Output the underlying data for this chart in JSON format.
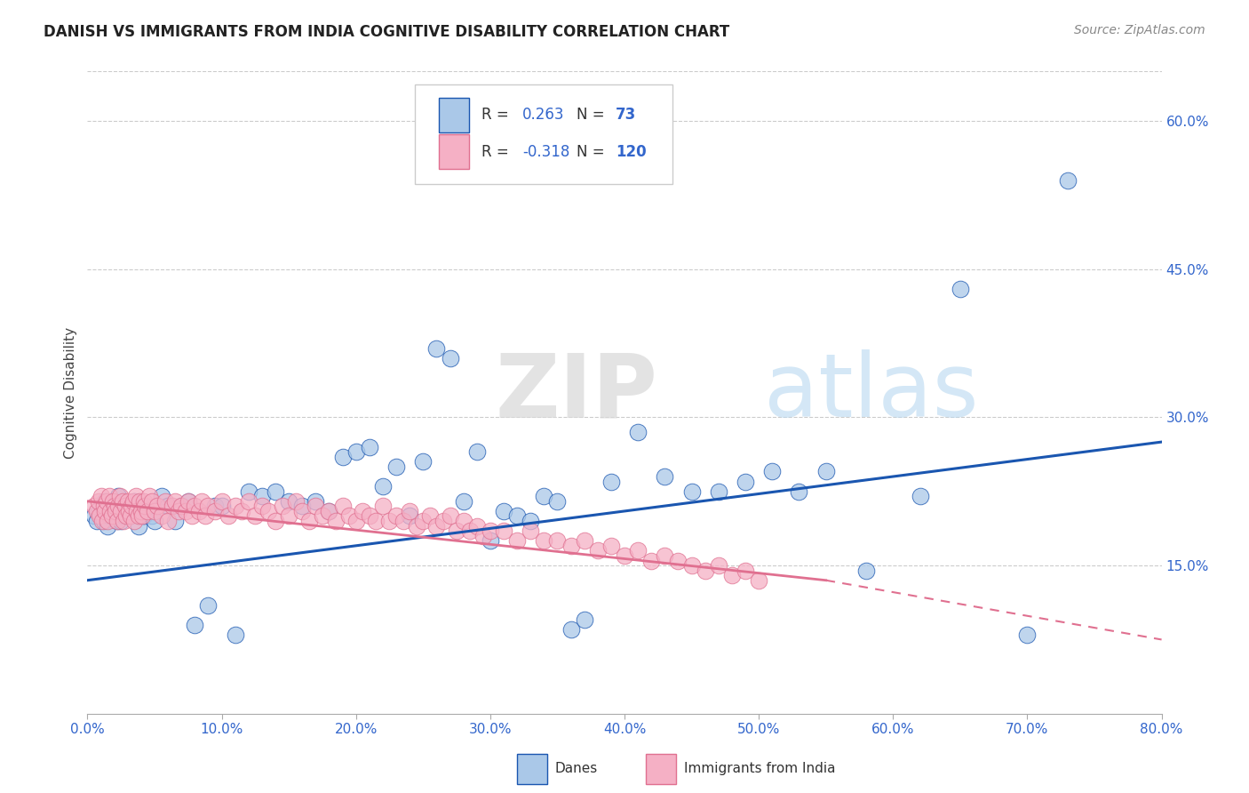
{
  "title": "DANISH VS IMMIGRANTS FROM INDIA COGNITIVE DISABILITY CORRELATION CHART",
  "source": "Source: ZipAtlas.com",
  "ylabel": "Cognitive Disability",
  "watermark_zip": "ZIP",
  "watermark_atlas": "atlas",
  "xlim": [
    0.0,
    0.8
  ],
  "ylim": [
    0.0,
    0.65
  ],
  "xticks": [
    0.0,
    0.1,
    0.2,
    0.3,
    0.4,
    0.5,
    0.6,
    0.7,
    0.8
  ],
  "yticks_right": [
    0.15,
    0.3,
    0.45,
    0.6
  ],
  "ytick_labels_right": [
    "15.0%",
    "30.0%",
    "45.0%",
    "60.0%"
  ],
  "xtick_labels": [
    "0.0%",
    "10.0%",
    "20.0%",
    "30.0%",
    "40.0%",
    "50.0%",
    "60.0%",
    "70.0%",
    "80.0%"
  ],
  "danes_color": "#aac8e8",
  "india_color": "#f5b0c5",
  "danes_line_color": "#1a56b0",
  "india_line_color": "#e07090",
  "legend_R_danes": "0.263",
  "legend_N_danes": "73",
  "legend_R_india": "-0.318",
  "legend_N_india": "120",
  "danes_label": "Danes",
  "india_label": "Immigrants from India",
  "danes_trend_x0": 0.0,
  "danes_trend_y0": 0.135,
  "danes_trend_x1": 0.8,
  "danes_trend_y1": 0.275,
  "india_trend_x0": 0.0,
  "india_trend_y0": 0.215,
  "india_trend_solid_end_x": 0.55,
  "india_trend_solid_end_y": 0.135,
  "india_trend_x1": 0.8,
  "india_trend_y1": 0.075,
  "danes_x": [
    0.005,
    0.007,
    0.008,
    0.01,
    0.012,
    0.013,
    0.015,
    0.016,
    0.018,
    0.02,
    0.022,
    0.023,
    0.025,
    0.027,
    0.03,
    0.032,
    0.035,
    0.038,
    0.04,
    0.042,
    0.045,
    0.048,
    0.05,
    0.055,
    0.06,
    0.065,
    0.07,
    0.075,
    0.08,
    0.09,
    0.095,
    0.1,
    0.11,
    0.12,
    0.13,
    0.14,
    0.15,
    0.16,
    0.17,
    0.18,
    0.19,
    0.2,
    0.21,
    0.22,
    0.23,
    0.24,
    0.25,
    0.26,
    0.27,
    0.28,
    0.29,
    0.3,
    0.31,
    0.32,
    0.33,
    0.34,
    0.35,
    0.36,
    0.37,
    0.39,
    0.41,
    0.43,
    0.45,
    0.47,
    0.49,
    0.51,
    0.53,
    0.55,
    0.58,
    0.62,
    0.65,
    0.7,
    0.73
  ],
  "danes_y": [
    0.2,
    0.195,
    0.205,
    0.21,
    0.195,
    0.215,
    0.19,
    0.2,
    0.205,
    0.215,
    0.195,
    0.22,
    0.195,
    0.2,
    0.205,
    0.2,
    0.215,
    0.19,
    0.21,
    0.2,
    0.205,
    0.2,
    0.195,
    0.22,
    0.21,
    0.195,
    0.21,
    0.215,
    0.09,
    0.11,
    0.21,
    0.21,
    0.08,
    0.225,
    0.22,
    0.225,
    0.215,
    0.21,
    0.215,
    0.205,
    0.26,
    0.265,
    0.27,
    0.23,
    0.25,
    0.2,
    0.255,
    0.37,
    0.36,
    0.215,
    0.265,
    0.175,
    0.205,
    0.2,
    0.195,
    0.22,
    0.215,
    0.085,
    0.095,
    0.235,
    0.285,
    0.24,
    0.225,
    0.225,
    0.235,
    0.245,
    0.225,
    0.245,
    0.145,
    0.22,
    0.43,
    0.08,
    0.54
  ],
  "india_x": [
    0.005,
    0.007,
    0.008,
    0.009,
    0.01,
    0.011,
    0.012,
    0.013,
    0.014,
    0.015,
    0.016,
    0.017,
    0.018,
    0.019,
    0.02,
    0.021,
    0.022,
    0.023,
    0.024,
    0.025,
    0.026,
    0.027,
    0.028,
    0.029,
    0.03,
    0.031,
    0.032,
    0.033,
    0.034,
    0.035,
    0.036,
    0.037,
    0.038,
    0.039,
    0.04,
    0.041,
    0.042,
    0.043,
    0.045,
    0.046,
    0.048,
    0.05,
    0.052,
    0.055,
    0.058,
    0.06,
    0.063,
    0.065,
    0.068,
    0.07,
    0.073,
    0.075,
    0.078,
    0.08,
    0.083,
    0.085,
    0.088,
    0.09,
    0.095,
    0.1,
    0.105,
    0.11,
    0.115,
    0.12,
    0.125,
    0.13,
    0.135,
    0.14,
    0.145,
    0.15,
    0.155,
    0.16,
    0.165,
    0.17,
    0.175,
    0.18,
    0.185,
    0.19,
    0.195,
    0.2,
    0.205,
    0.21,
    0.215,
    0.22,
    0.225,
    0.23,
    0.235,
    0.24,
    0.245,
    0.25,
    0.255,
    0.26,
    0.265,
    0.27,
    0.275,
    0.28,
    0.285,
    0.29,
    0.295,
    0.3,
    0.31,
    0.32,
    0.33,
    0.34,
    0.35,
    0.36,
    0.37,
    0.38,
    0.39,
    0.4,
    0.41,
    0.42,
    0.43,
    0.44,
    0.45,
    0.46,
    0.47,
    0.48,
    0.49,
    0.5
  ],
  "india_y": [
    0.21,
    0.205,
    0.215,
    0.2,
    0.22,
    0.195,
    0.21,
    0.205,
    0.215,
    0.195,
    0.22,
    0.205,
    0.2,
    0.215,
    0.21,
    0.205,
    0.195,
    0.21,
    0.22,
    0.205,
    0.215,
    0.195,
    0.21,
    0.2,
    0.215,
    0.205,
    0.2,
    0.21,
    0.215,
    0.195,
    0.22,
    0.205,
    0.2,
    0.215,
    0.205,
    0.2,
    0.215,
    0.21,
    0.205,
    0.22,
    0.215,
    0.205,
    0.21,
    0.2,
    0.215,
    0.195,
    0.21,
    0.215,
    0.205,
    0.21,
    0.205,
    0.215,
    0.2,
    0.21,
    0.205,
    0.215,
    0.2,
    0.21,
    0.205,
    0.215,
    0.2,
    0.21,
    0.205,
    0.215,
    0.2,
    0.21,
    0.205,
    0.195,
    0.21,
    0.2,
    0.215,
    0.205,
    0.195,
    0.21,
    0.2,
    0.205,
    0.195,
    0.21,
    0.2,
    0.195,
    0.205,
    0.2,
    0.195,
    0.21,
    0.195,
    0.2,
    0.195,
    0.205,
    0.19,
    0.195,
    0.2,
    0.19,
    0.195,
    0.2,
    0.185,
    0.195,
    0.185,
    0.19,
    0.18,
    0.185,
    0.185,
    0.175,
    0.185,
    0.175,
    0.175,
    0.17,
    0.175,
    0.165,
    0.17,
    0.16,
    0.165,
    0.155,
    0.16,
    0.155,
    0.15,
    0.145,
    0.15,
    0.14,
    0.145,
    0.135
  ]
}
